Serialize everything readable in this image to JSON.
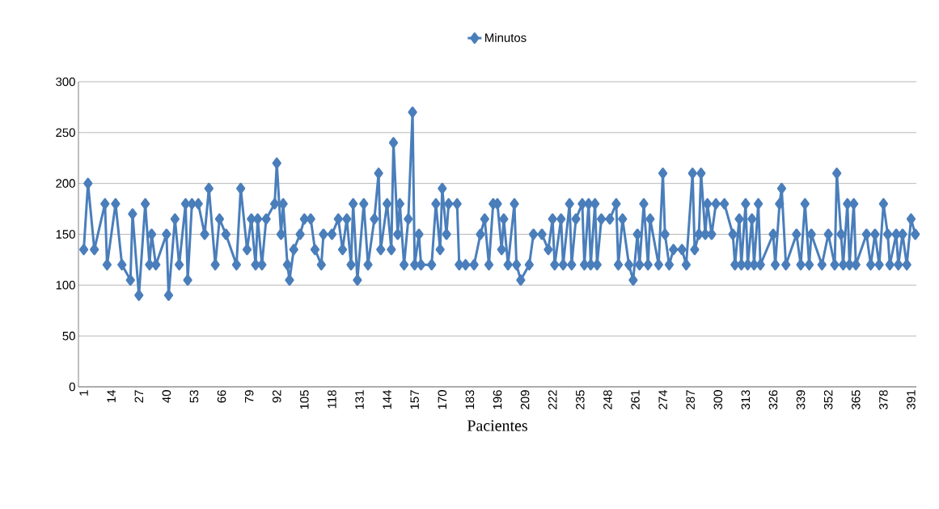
{
  "chart_data": {
    "type": "line",
    "xlabel": "Pacientes",
    "xlim": [
      -1.5,
      393.5
    ],
    "xticks": [
      1,
      14,
      27,
      40,
      53,
      66,
      79,
      92,
      105,
      118,
      131,
      144,
      157,
      170,
      183,
      196,
      209,
      222,
      235,
      248,
      261,
      274,
      287,
      300,
      313,
      326,
      339,
      352,
      365,
      378,
      391
    ],
    "ylim": [
      0,
      300
    ],
    "yticks": [
      0,
      50,
      100,
      150,
      200,
      250,
      300
    ],
    "grid": "y",
    "legend": "top",
    "marker": "diamond",
    "line_style": "solid",
    "series": [
      {
        "name": "Minutos",
        "color": "#4a7ebb",
        "x": [
          1,
          3,
          6,
          11,
          12,
          16,
          19,
          23,
          24,
          27,
          30,
          32,
          33,
          35,
          40,
          41,
          44,
          46,
          49,
          50,
          52,
          55,
          58,
          60,
          63,
          65,
          68,
          73,
          75,
          78,
          80,
          82,
          83,
          85,
          87,
          91,
          92,
          94,
          95,
          97,
          98,
          100,
          103,
          105,
          108,
          110,
          113,
          114,
          118,
          121,
          123,
          125,
          127,
          128,
          130,
          133,
          135,
          138,
          140,
          141,
          144,
          146,
          147,
          149,
          150,
          152,
          154,
          156,
          157,
          159,
          160,
          165,
          167,
          169,
          170,
          172,
          173,
          177,
          178,
          181,
          185,
          188,
          190,
          192,
          194,
          196,
          198,
          199,
          201,
          204,
          205,
          207,
          211,
          213,
          217,
          220,
          222,
          223,
          226,
          227,
          230,
          231,
          233,
          236,
          237,
          239,
          240,
          242,
          243,
          245,
          249,
          252,
          253,
          255,
          258,
          260,
          262,
          263,
          265,
          267,
          268,
          272,
          274,
          275,
          277,
          279,
          283,
          285,
          288,
          289,
          291,
          292,
          294,
          295,
          297,
          299,
          303,
          307,
          308,
          310,
          311,
          313,
          314,
          316,
          317,
          319,
          320,
          326,
          327,
          329,
          330,
          332,
          337,
          339,
          341,
          343,
          344,
          349,
          352,
          355,
          356,
          358,
          359,
          361,
          362,
          364,
          365,
          370,
          372,
          374,
          376,
          378,
          380,
          381,
          384,
          385,
          387,
          389,
          391,
          393
        ],
        "values": [
          135,
          200,
          135,
          180,
          120,
          180,
          120,
          105,
          170,
          90,
          180,
          120,
          150,
          120,
          150,
          90,
          165,
          120,
          180,
          105,
          180,
          180,
          150,
          195,
          120,
          165,
          150,
          120,
          195,
          135,
          165,
          120,
          165,
          120,
          165,
          180,
          220,
          150,
          180,
          120,
          105,
          135,
          150,
          165,
          165,
          135,
          120,
          150,
          150,
          165,
          135,
          165,
          120,
          180,
          105,
          180,
          120,
          165,
          210,
          135,
          180,
          135,
          240,
          150,
          180,
          120,
          165,
          270,
          120,
          150,
          120,
          120,
          180,
          135,
          195,
          150,
          180,
          180,
          120,
          120,
          120,
          150,
          165,
          120,
          180,
          180,
          135,
          165,
          120,
          180,
          120,
          105,
          120,
          150,
          150,
          135,
          165,
          120,
          165,
          120,
          180,
          120,
          165,
          180,
          120,
          180,
          120,
          180,
          120,
          165,
          165,
          180,
          120,
          165,
          120,
          105,
          150,
          120,
          180,
          120,
          165,
          120,
          210,
          150,
          120,
          135,
          135,
          120,
          210,
          135,
          150,
          210,
          150,
          180,
          150,
          180,
          180,
          150,
          120,
          165,
          120,
          180,
          120,
          165,
          120,
          180,
          120,
          150,
          120,
          180,
          195,
          120,
          150,
          120,
          180,
          120,
          150,
          120,
          150,
          120,
          210,
          150,
          120,
          180,
          120,
          180,
          120,
          150,
          120,
          150,
          120,
          180,
          150,
          120,
          150,
          120,
          150,
          120,
          165,
          150
        ]
      }
    ]
  }
}
